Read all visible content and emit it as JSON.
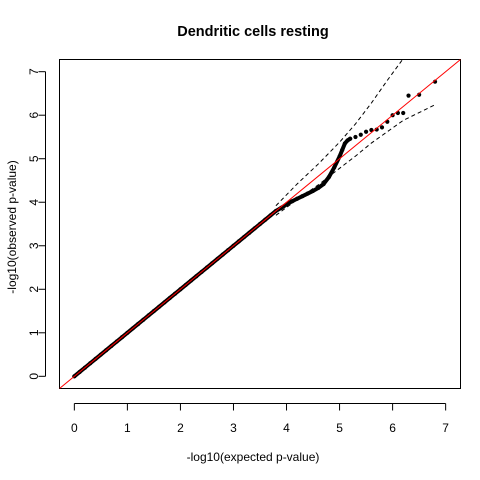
{
  "chart_data": {
    "type": "scatter",
    "title": "Dendritic cells resting",
    "xlabel": "-log10(expected p-value)",
    "ylabel": "-log10(observed p-value)",
    "xlim": [
      -0.28,
      7.28
    ],
    "ylim": [
      -0.28,
      7.28
    ],
    "x_ticks": [
      0,
      1,
      2,
      3,
      4,
      5,
      6,
      7
    ],
    "y_ticks": [
      0,
      1,
      2,
      3,
      4,
      5,
      6,
      7
    ],
    "x_tick_labels": [
      "0",
      "1",
      "2",
      "3",
      "4",
      "5",
      "6",
      "7"
    ],
    "y_tick_labels": [
      "0",
      "1",
      "2",
      "3",
      "4",
      "5",
      "6",
      "7"
    ],
    "grid": false,
    "point_color": "#000000",
    "reference_line": {
      "slope": 1,
      "intercept": 0,
      "color": "#ff0000"
    },
    "confidence_bands": {
      "style": "dashed",
      "color": "#000000",
      "upper": [
        [
          3.8,
          3.92
        ],
        [
          4.2,
          4.42
        ],
        [
          4.6,
          4.88
        ],
        [
          5.0,
          5.38
        ],
        [
          5.3,
          5.8
        ],
        [
          5.6,
          6.28
        ],
        [
          5.9,
          6.8
        ],
        [
          6.2,
          7.3
        ]
      ],
      "lower": [
        [
          3.8,
          3.7
        ],
        [
          4.2,
          4.06
        ],
        [
          4.6,
          4.4
        ],
        [
          5.0,
          4.78
        ],
        [
          5.3,
          5.06
        ],
        [
          5.6,
          5.36
        ],
        [
          5.9,
          5.62
        ],
        [
          6.2,
          5.88
        ],
        [
          6.5,
          6.06
        ],
        [
          6.8,
          6.24
        ]
      ]
    },
    "series": [
      {
        "values": [
          [
            0.0,
            0.0
          ],
          [
            0.1,
            0.1
          ],
          [
            0.2,
            0.2
          ],
          [
            0.3,
            0.3
          ],
          [
            0.4,
            0.4
          ],
          [
            0.5,
            0.5
          ],
          [
            0.6,
            0.6
          ],
          [
            0.7,
            0.7
          ],
          [
            0.8,
            0.8
          ],
          [
            0.9,
            0.9
          ],
          [
            1.0,
            1.0
          ],
          [
            1.1,
            1.1
          ],
          [
            1.2,
            1.2
          ],
          [
            1.3,
            1.3
          ],
          [
            1.4,
            1.4
          ],
          [
            1.5,
            1.5
          ],
          [
            1.6,
            1.6
          ],
          [
            1.7,
            1.7
          ],
          [
            1.8,
            1.8
          ],
          [
            1.9,
            1.9
          ],
          [
            2.0,
            2.0
          ],
          [
            2.1,
            2.1
          ],
          [
            2.2,
            2.2
          ],
          [
            2.3,
            2.3
          ],
          [
            2.4,
            2.4
          ],
          [
            2.5,
            2.5
          ],
          [
            2.6,
            2.6
          ],
          [
            2.7,
            2.7
          ],
          [
            2.8,
            2.8
          ],
          [
            2.9,
            2.9
          ],
          [
            3.0,
            3.0
          ],
          [
            3.1,
            3.1
          ],
          [
            3.2,
            3.2
          ],
          [
            3.3,
            3.3
          ],
          [
            3.4,
            3.4
          ],
          [
            3.5,
            3.5
          ],
          [
            3.6,
            3.6
          ],
          [
            3.7,
            3.7
          ],
          [
            3.8,
            3.8
          ],
          [
            3.9,
            3.87
          ],
          [
            4.0,
            3.95
          ],
          [
            4.1,
            4.02
          ],
          [
            4.2,
            4.08
          ],
          [
            4.3,
            4.14
          ],
          [
            4.4,
            4.2
          ],
          [
            4.5,
            4.26
          ],
          [
            4.6,
            4.33
          ],
          [
            4.7,
            4.42
          ],
          [
            4.8,
            4.58
          ],
          [
            4.9,
            4.8
          ],
          [
            5.0,
            5.05
          ],
          [
            5.05,
            5.2
          ],
          [
            5.1,
            5.35
          ],
          [
            5.15,
            5.42
          ],
          [
            5.2,
            5.46
          ],
          [
            5.3,
            5.5
          ],
          [
            5.4,
            5.55
          ],
          [
            5.5,
            5.62
          ],
          [
            5.6,
            5.66
          ],
          [
            5.7,
            5.67
          ],
          [
            5.8,
            5.72
          ],
          [
            5.9,
            5.85
          ],
          [
            6.0,
            6.0
          ],
          [
            6.1,
            6.05
          ],
          [
            6.2,
            6.05
          ],
          [
            6.3,
            6.45
          ],
          [
            6.5,
            6.47
          ],
          [
            6.8,
            6.77
          ]
        ]
      }
    ]
  }
}
